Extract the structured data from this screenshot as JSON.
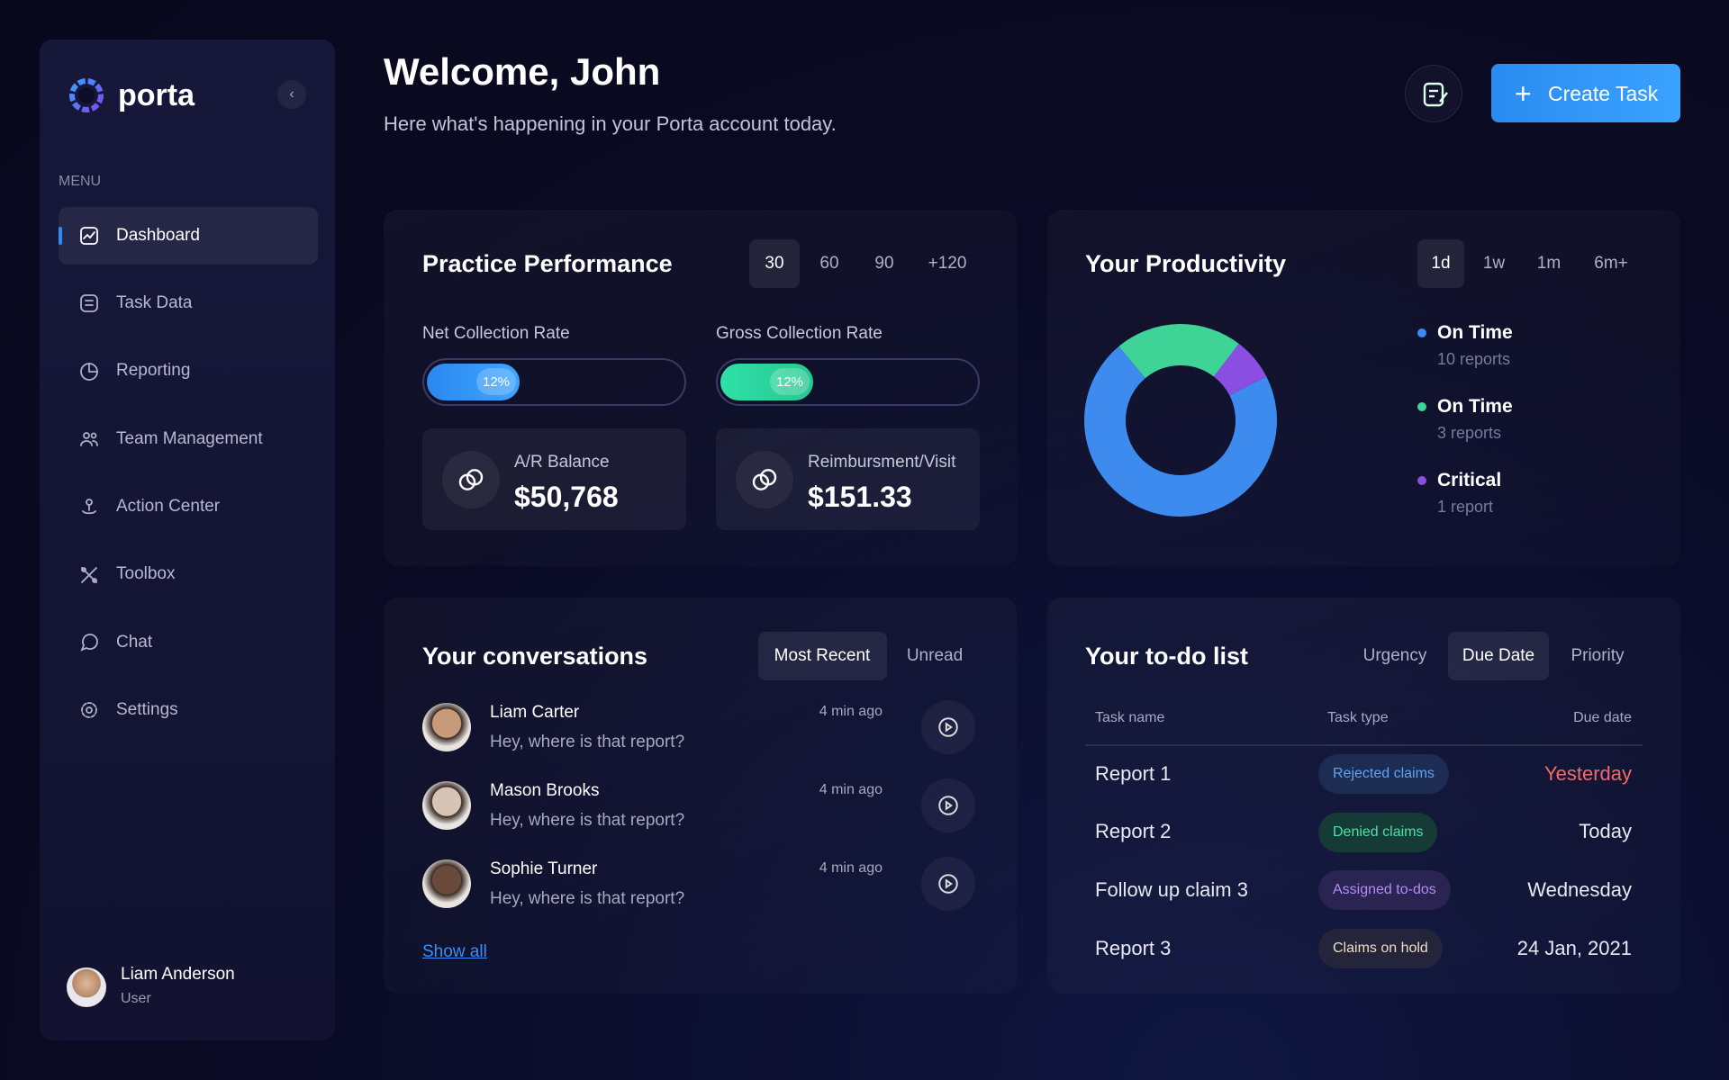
{
  "sidebar": {
    "brand": "porta",
    "menu_label": "MENU",
    "menu": [
      "Dashboard",
      "Task Data",
      "Reporting",
      "Team Management",
      "Action Center",
      "Toolbox",
      "Chat",
      "Settings"
    ],
    "user": {
      "name": "Liam Anderson",
      "role": "User"
    }
  },
  "header": {
    "title": "Welcome, John",
    "subtitle": "Here what's happening in your Porta account today.",
    "create_button": "Create Task"
  },
  "practice_performance": {
    "title": "Practice Performance",
    "periods": [
      "30",
      "60",
      "90",
      "+120"
    ],
    "rates": [
      {
        "label": "Net Collection Rate",
        "value_label": "12%"
      },
      {
        "label": "Gross Collection Rate",
        "value_label": "12%"
      }
    ],
    "stats": [
      {
        "label": "A/R Balance",
        "value": "$50,768"
      },
      {
        "label": "Reimbursment/Visit",
        "value": "$151.33"
      }
    ]
  },
  "productivity": {
    "title": "Your Productivity",
    "periods": [
      "1d",
      "1w",
      "1m",
      "6m+"
    ],
    "items": [
      {
        "name": "On Time",
        "count": 10,
        "count_label": "10 reports",
        "color": "#3d8bef"
      },
      {
        "name": "On Time",
        "count": 3,
        "count_label": "3 reports",
        "color": "#3fd398"
      },
      {
        "name": "Critical",
        "count": 1,
        "count_label": "1 report",
        "color": "#8a4fe2"
      }
    ]
  },
  "conversations": {
    "title": "Your conversations",
    "tabs": [
      "Most Recent",
      "Unread"
    ],
    "items": [
      {
        "name": "Liam Carter",
        "message": "Hey, where is that report?",
        "time": "4 min ago"
      },
      {
        "name": "Mason Brooks",
        "message": "Hey, where is that report?",
        "time": "4 min ago"
      },
      {
        "name": "Sophie Turner",
        "message": "Hey, where is that report?",
        "time": "4 min ago"
      }
    ],
    "show_all": "Show all"
  },
  "todo": {
    "title": "Your to-do list",
    "tabs": [
      "Urgency",
      "Due Date",
      "Priority"
    ],
    "columns": [
      "Task name",
      "Task type",
      "Due date"
    ],
    "rows": [
      [
        "Report 1",
        "Rejected claims",
        "Yesterday"
      ],
      [
        "Report 2",
        "Denied claims",
        "Today"
      ],
      [
        "Follow up claim 3",
        "Assigned to-dos",
        "Wednesday"
      ],
      [
        "Report 3",
        "Claims on hold",
        "24 Jan, 2021"
      ]
    ]
  }
}
